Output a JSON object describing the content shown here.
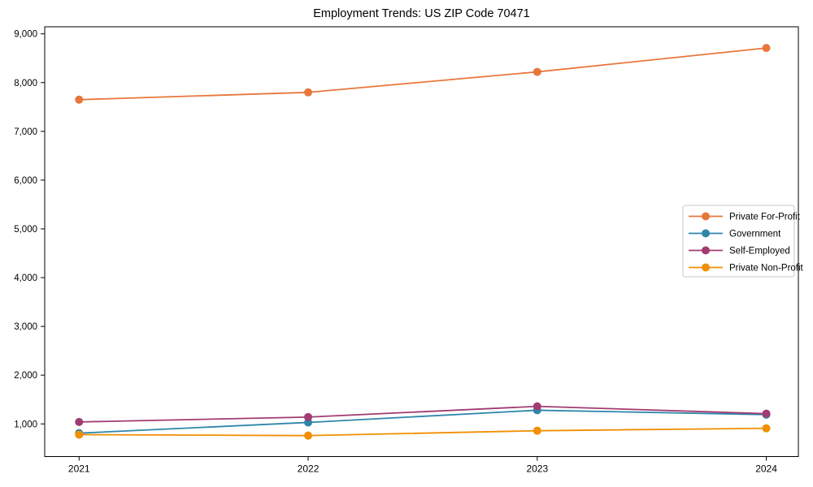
{
  "chart_data": {
    "type": "line",
    "title": "Employment Trends: US ZIP Code 70471",
    "x": [
      2021,
      2022,
      2023,
      2024
    ],
    "series": [
      {
        "name": "Private For-Profit",
        "color": "#E8763B",
        "values": [
          7650,
          7800,
          8220,
          8710
        ]
      },
      {
        "name": "Government",
        "color": "#2E86AB",
        "values": [
          810,
          1030,
          1280,
          1190
        ]
      },
      {
        "name": "Self-Employed",
        "color": "#A23B72",
        "values": [
          1040,
          1140,
          1360,
          1210
        ]
      },
      {
        "name": "Private Non-Profit",
        "color": "#F18F01",
        "values": [
          780,
          760,
          860,
          910
        ]
      }
    ],
    "xlabel": "",
    "ylabel": "",
    "xlim": [
      2020.85,
      2024.14
    ],
    "ylim": [
      330,
      9145
    ],
    "y_ticks": [
      1000,
      2000,
      3000,
      4000,
      5000,
      6000,
      7000,
      8000,
      9000
    ],
    "x_tick_labels": [
      "2021",
      "2022",
      "2023",
      "2024"
    ],
    "grid": false,
    "legend_position": "center-right",
    "marker": "circle",
    "axis_color": "#000000",
    "background_color": "#ffffff",
    "legend_border_color": "#c9c9c9"
  }
}
